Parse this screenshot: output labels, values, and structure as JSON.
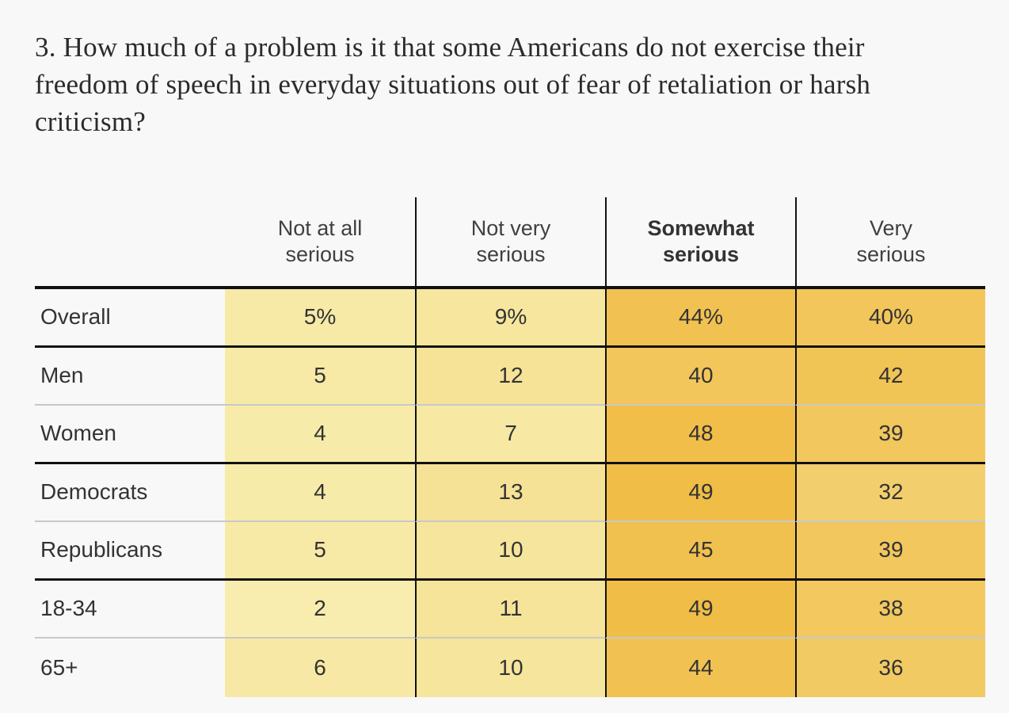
{
  "page": {
    "background_color": "#f8f8f8"
  },
  "title": {
    "text": "3. How much of a problem is it that some Americans do not exercise their freedom of speech in everyday situations out of fear of retaliation or harsh criticism?",
    "color": "#2b2b2b"
  },
  "table": {
    "column_headers": [
      {
        "lines": [
          "Not at all",
          "serious"
        ],
        "bold": false
      },
      {
        "lines": [
          "Not very",
          "serious"
        ],
        "bold": false
      },
      {
        "lines": [
          "Somewhat",
          "serious"
        ],
        "bold": true
      },
      {
        "lines": [
          "Very",
          "serious"
        ],
        "bold": false
      }
    ],
    "rows": [
      {
        "label": "Overall",
        "display": [
          "5%",
          "9%",
          "44%",
          "40%"
        ],
        "values": [
          5,
          9,
          44,
          40
        ],
        "separator_after": "black"
      },
      {
        "label": "Men",
        "display": [
          "5",
          "12",
          "40",
          "42"
        ],
        "values": [
          5,
          12,
          40,
          42
        ],
        "separator_after": "gray"
      },
      {
        "label": "Women",
        "display": [
          "4",
          "7",
          "48",
          "39"
        ],
        "values": [
          4,
          7,
          48,
          39
        ],
        "separator_after": "black"
      },
      {
        "label": "Democrats",
        "display": [
          "4",
          "13",
          "49",
          "32"
        ],
        "values": [
          4,
          13,
          49,
          32
        ],
        "separator_after": "gray"
      },
      {
        "label": "Republicans",
        "display": [
          "5",
          "10",
          "45",
          "39"
        ],
        "values": [
          5,
          10,
          45,
          39
        ],
        "separator_after": "black"
      },
      {
        "label": "18-34",
        "display": [
          "2",
          "11",
          "49",
          "38"
        ],
        "values": [
          2,
          11,
          49,
          38
        ],
        "separator_after": "gray"
      },
      {
        "label": "65+",
        "display": [
          "6",
          "10",
          "44",
          "36"
        ],
        "values": [
          6,
          10,
          44,
          36
        ],
        "separator_after": "none"
      }
    ],
    "heatmap": {
      "min_value": 0,
      "max_value": 50,
      "min_color": "#f8efb2",
      "max_color": "#f0bc45"
    },
    "colors": {
      "header_text": "#404040",
      "cell_text": "#333333",
      "rule_black": "#111111",
      "rule_gray": "#c8c8c8"
    }
  },
  "chart_data": {
    "type": "heatmap",
    "title": "3. How much of a problem is it that some Americans do not exercise their freedom of speech in everyday situations out of fear of retaliation or harsh criticism?",
    "columns": [
      "Not at all serious",
      "Not very serious",
      "Somewhat serious",
      "Very serious"
    ],
    "rows": [
      "Overall",
      "Men",
      "Women",
      "Democrats",
      "Republicans",
      "18-34",
      "65+"
    ],
    "values": [
      [
        5,
        9,
        44,
        40
      ],
      [
        5,
        12,
        40,
        42
      ],
      [
        4,
        7,
        48,
        39
      ],
      [
        4,
        13,
        49,
        32
      ],
      [
        5,
        10,
        45,
        39
      ],
      [
        2,
        11,
        49,
        38
      ],
      [
        6,
        10,
        44,
        36
      ]
    ],
    "unit": "%",
    "highlighted_column": "Somewhat serious",
    "color_scale": {
      "low": "#f8efb2",
      "high": "#f0bc45",
      "domain": [
        0,
        50
      ]
    },
    "row_groups": [
      [
        "Overall"
      ],
      [
        "Men",
        "Women"
      ],
      [
        "Democrats",
        "Republicans"
      ],
      [
        "18-34",
        "65+"
      ]
    ]
  }
}
